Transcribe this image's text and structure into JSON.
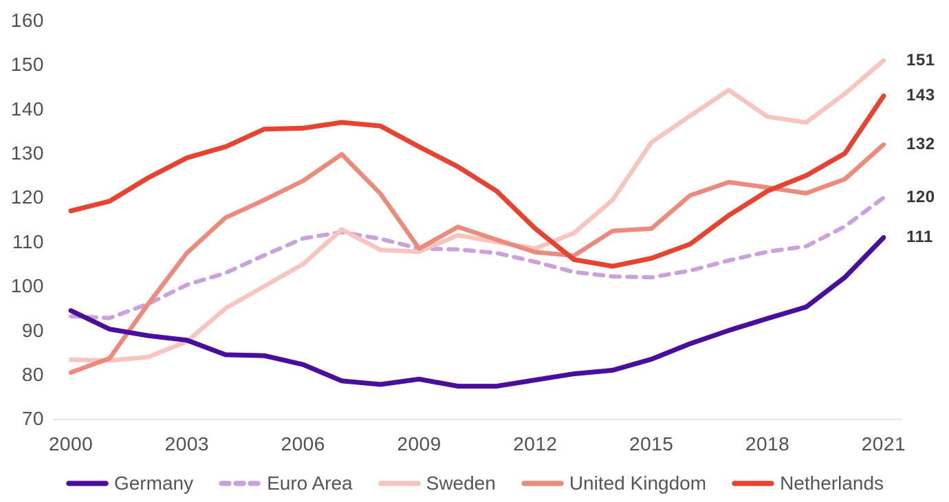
{
  "chart_data": {
    "type": "line",
    "title": "",
    "xlabel": "",
    "ylabel": "",
    "grid": false,
    "legend_position": "bottom",
    "ylim": [
      70,
      160
    ],
    "y_ticks": [
      160,
      150,
      140,
      130,
      120,
      110,
      100,
      90,
      80,
      70
    ],
    "x": [
      2000,
      2001,
      2002,
      2003,
      2004,
      2005,
      2006,
      2007,
      2008,
      2009,
      2010,
      2011,
      2012,
      2013,
      2014,
      2015,
      2016,
      2017,
      2018,
      2019,
      2020,
      2021
    ],
    "x_tick_labels": [
      "2000",
      "2003",
      "2006",
      "2009",
      "2012",
      "2015",
      "2018",
      "2021"
    ],
    "x_tick_years": [
      2000,
      2003,
      2006,
      2009,
      2012,
      2015,
      2018,
      2021
    ],
    "series": [
      {
        "name": "Germany",
        "color": "#4a0e9d",
        "style": "solid",
        "width": 7,
        "end_label": "111",
        "values": [
          94.5,
          90.3,
          88.8,
          87.8,
          84.5,
          84.3,
          82.3,
          78.6,
          77.8,
          79.0,
          77.4,
          77.4,
          78.8,
          80.2,
          81.0,
          83.5,
          87.0,
          90.0,
          92.7,
          95.3,
          102.0,
          111.0
        ]
      },
      {
        "name": "Euro Area",
        "color": "#c9a1dd",
        "style": "dashed",
        "width": 6,
        "end_label": "120",
        "values": [
          93.2,
          92.8,
          96.0,
          100.3,
          103.0,
          107.0,
          110.8,
          112.2,
          110.7,
          108.5,
          108.3,
          107.5,
          105.5,
          103.2,
          102.2,
          102.0,
          103.5,
          105.8,
          107.8,
          109.0,
          113.5,
          120.0
        ]
      },
      {
        "name": "Sweden",
        "color": "#f7c5bd",
        "style": "solid",
        "width": 6.5,
        "end_label": "151",
        "values": [
          83.4,
          83.2,
          84.0,
          87.5,
          95.0,
          100.0,
          105.0,
          112.8,
          108.2,
          107.8,
          111.5,
          110.0,
          108.5,
          112.0,
          119.5,
          132.5,
          138.5,
          144.3,
          138.3,
          137.0,
          143.5,
          151.0
        ]
      },
      {
        "name": "United Kingdom",
        "color": "#ec8b7b",
        "style": "solid",
        "width": 6.5,
        "end_label": "132",
        "values": [
          80.5,
          83.7,
          96.0,
          107.5,
          115.5,
          119.5,
          123.8,
          129.8,
          120.9,
          108.5,
          113.4,
          110.5,
          107.7,
          106.9,
          112.5,
          113.0,
          120.5,
          123.5,
          122.3,
          121.0,
          124.2,
          132.0
        ]
      },
      {
        "name": "Netherlands",
        "color": "#e64430",
        "style": "solid",
        "width": 7,
        "end_label": "143",
        "values": [
          117.0,
          119.2,
          124.5,
          129.0,
          131.5,
          135.5,
          135.7,
          137.0,
          136.2,
          131.5,
          127.0,
          121.5,
          113.0,
          106.0,
          104.5,
          106.3,
          109.5,
          116.0,
          121.5,
          125.0,
          130.0,
          143.0
        ]
      }
    ],
    "draw_order": [
      "Euro Area",
      "Sweden",
      "United Kingdom",
      "Germany",
      "Netherlands"
    ]
  },
  "colors": {
    "background": "#ffffff",
    "axis_line": "#d9d9d9",
    "tick_label": "#515151",
    "end_label": "#363636",
    "legend_label": "#555555"
  }
}
